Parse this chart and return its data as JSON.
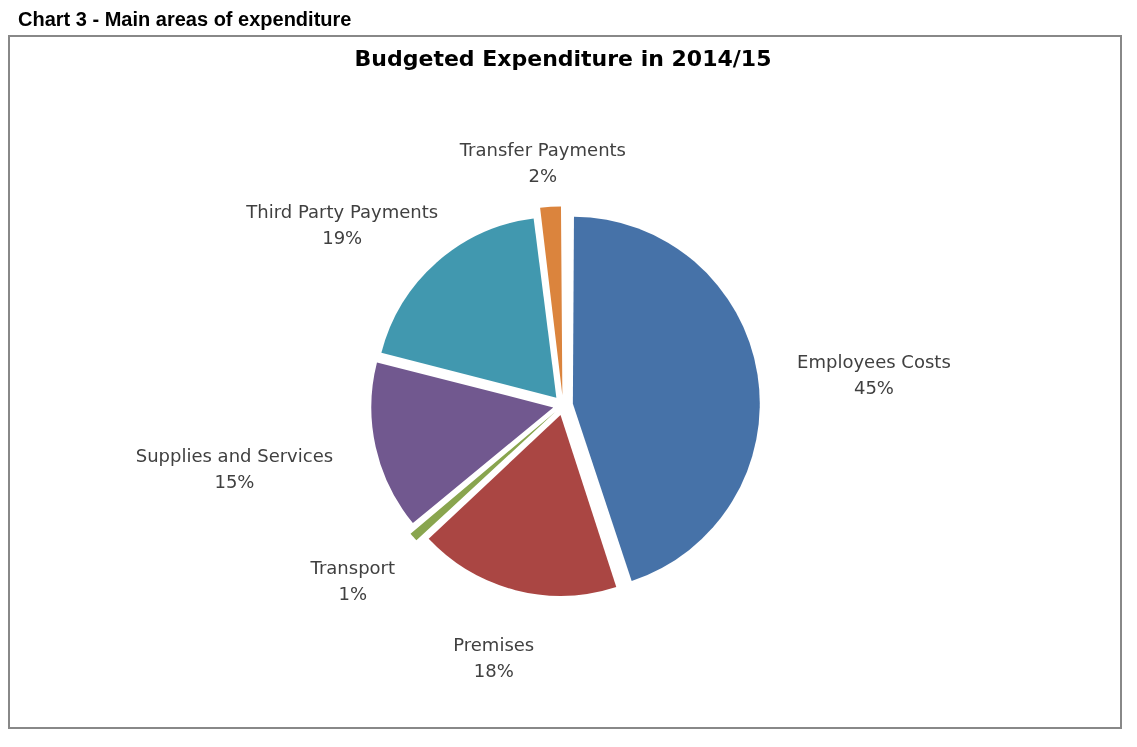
{
  "chart_data": {
    "type": "pie",
    "title": "Chart 3 - Main areas of expenditure",
    "subtitle": "Budgeted Expenditure in 2014/15",
    "categories": [
      "Employees Costs",
      "Premises",
      "Transport",
      "Supplies and Services",
      "Third Party Payments",
      "Transfer Payments"
    ],
    "values": [
      45,
      18,
      1,
      15,
      19,
      2
    ],
    "value_labels": [
      "45%",
      "18%",
      "1%",
      "15%",
      "19%",
      "2%"
    ],
    "colors": [
      "#4672a8",
      "#aa4643",
      "#89a54e",
      "#71588f",
      "#4198af",
      "#db843d"
    ],
    "legend": false
  }
}
